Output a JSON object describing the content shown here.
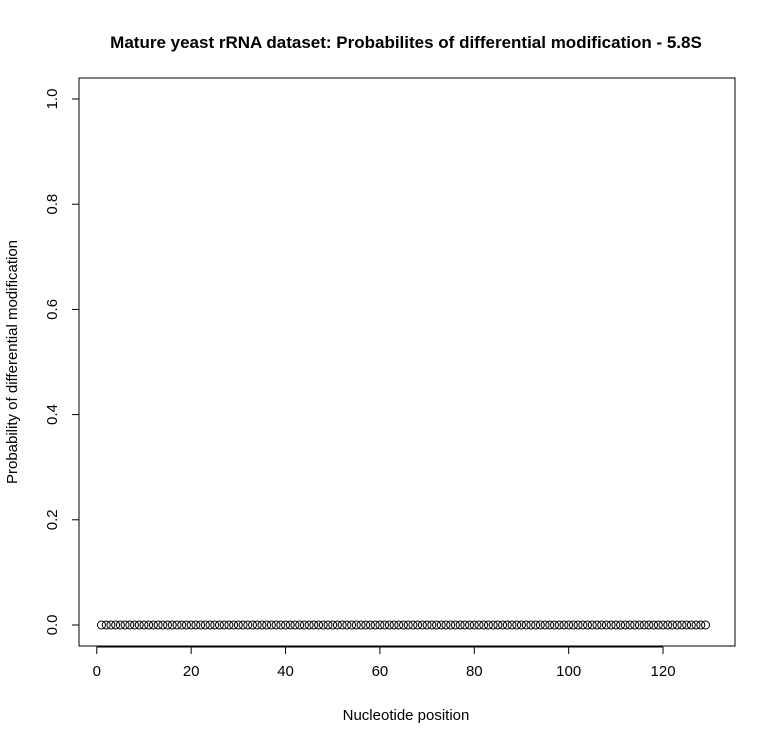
{
  "chart_data": {
    "type": "scatter",
    "title": "Mature yeast rRNA dataset: Probabilites of differential modification - 5.8S",
    "xlabel": "Nucleotide position",
    "ylabel": "Probability of differential modification",
    "xlim": [
      1,
      129
    ],
    "ylim": [
      0,
      1
    ],
    "xticks": [
      0,
      20,
      40,
      60,
      80,
      100,
      120
    ],
    "yticks": [
      0.0,
      0.2,
      0.4,
      0.6,
      0.8,
      1.0
    ],
    "xtick_labels": [
      "0",
      "20",
      "40",
      "60",
      "80",
      "100",
      "120"
    ],
    "ytick_labels": [
      "0.0",
      "0.2",
      "0.4",
      "0.6",
      "0.8",
      "1.0"
    ],
    "marker": "open-circle",
    "color": "#000000",
    "grid": false,
    "series": [
      {
        "x_start": 1,
        "x_end": 129,
        "constant_y": 0.0
      }
    ]
  }
}
